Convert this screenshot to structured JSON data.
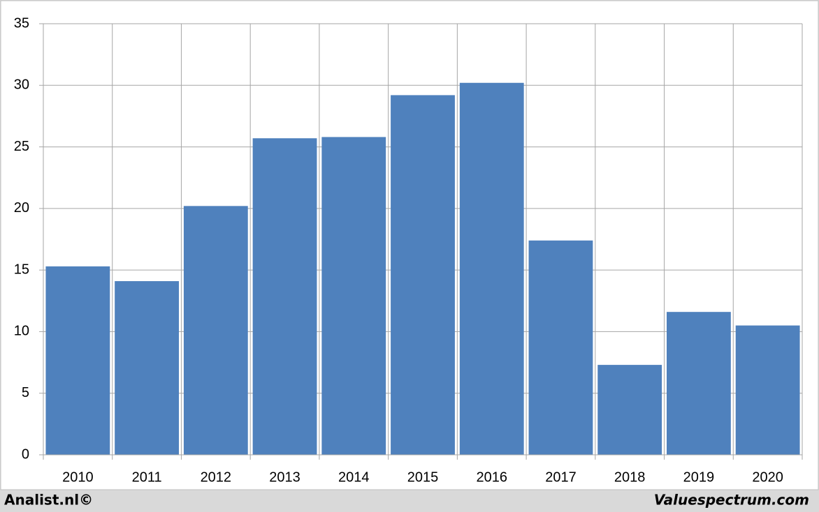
{
  "chart_data": {
    "type": "bar",
    "categories": [
      "2010",
      "2011",
      "2012",
      "2013",
      "2014",
      "2015",
      "2016",
      "2017",
      "2018",
      "2019",
      "2020"
    ],
    "values": [
      15.3,
      14.1,
      20.2,
      25.7,
      25.8,
      29.2,
      30.2,
      17.4,
      7.3,
      11.6,
      10.5
    ],
    "color": "#4f81bd",
    "ylim": [
      0,
      35
    ],
    "yticks": [
      0,
      5,
      10,
      15,
      20,
      25,
      30,
      35
    ],
    "grid": true,
    "credits": [
      "Analist.nl©",
      "Valuespectrum.com"
    ]
  }
}
